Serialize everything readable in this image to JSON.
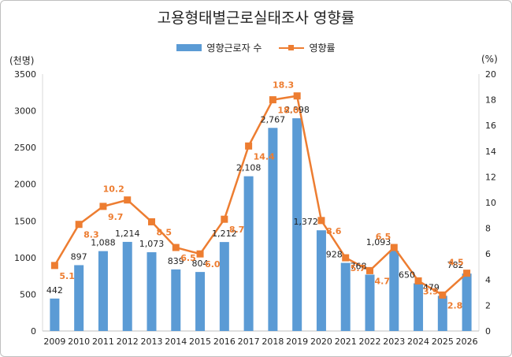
{
  "chart_data": {
    "type": "bar",
    "title": "고용형태별근로실태조사 영향률",
    "left_unit": "(천명)",
    "right_unit": "(%)",
    "categories": [
      "2009",
      "2010",
      "2011",
      "2012",
      "2013",
      "2014",
      "2015",
      "2016",
      "2017",
      "2018",
      "2019",
      "2020",
      "2021",
      "2022",
      "2023",
      "2024",
      "2025",
      "2026"
    ],
    "series": [
      {
        "name": "영향근로자 수",
        "type": "bar",
        "axis": "left",
        "color": "#5b9bd5",
        "values": [
          442,
          897,
          1088,
          1214,
          1073,
          839,
          804,
          1212,
          2108,
          2767,
          2898,
          1372,
          928,
          768,
          1093,
          650,
          479,
          782
        ],
        "labels": [
          "442",
          "897",
          "1,088",
          "1,214",
          "1,073",
          "839",
          "804",
          "1,212",
          "2,108",
          "2,767",
          "2,898",
          "1,372",
          "928",
          "768",
          "1,093",
          "650",
          "479",
          "782"
        ]
      },
      {
        "name": "영향률",
        "type": "line",
        "axis": "right",
        "color": "#ed7d31",
        "values": [
          5.1,
          8.3,
          9.7,
          10.2,
          8.5,
          6.5,
          6.0,
          8.7,
          14.4,
          18.0,
          18.3,
          8.6,
          5.7,
          4.7,
          6.5,
          3.9,
          2.8,
          4.5
        ],
        "labels": [
          "5.1",
          "8.3",
          "9.7",
          "10.2",
          "8.5",
          "6.5",
          "6.0",
          "8.7",
          "14.4",
          "18.0",
          "18.3",
          "8.6",
          "5.7",
          "4.7",
          "6.5",
          "3.9",
          "2.8",
          "4.5"
        ]
      }
    ],
    "ylim_left": [
      0,
      3500
    ],
    "yticks_left": [
      "0",
      "500",
      "1000",
      "1500",
      "2000",
      "2500",
      "3000",
      "3500"
    ],
    "ylim_right": [
      0,
      20
    ],
    "yticks_right": [
      "0",
      "2",
      "4",
      "6",
      "8",
      "10",
      "12",
      "14",
      "16",
      "18",
      "20"
    ],
    "legend_position": "top-center",
    "grid": false
  }
}
